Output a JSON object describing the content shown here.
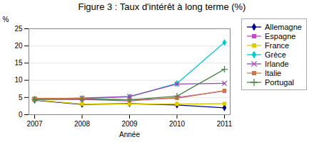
{
  "chart_data": {
    "type": "line",
    "title": "Figure 3 : Taux d'intérêt à long terme (%)",
    "x_label": "Année",
    "y_label": "%",
    "x": [
      2007,
      2008,
      2009,
      2010,
      2011
    ],
    "series": [
      {
        "name": "Allemagne",
        "color": "#00008B",
        "marker": "diamond",
        "values": [
          4.2,
          3.0,
          3.2,
          2.8,
          2.0
        ]
      },
      {
        "name": "Espagne",
        "color": "#cc44cc",
        "marker": "square",
        "values": [
          4.5,
          4.4,
          4.0,
          5.0,
          6.9
        ]
      },
      {
        "name": "France",
        "color": "#ddcc00",
        "marker": "square",
        "values": [
          4.3,
          3.1,
          3.1,
          3.1,
          3.2
        ]
      },
      {
        "name": "Grèce",
        "color": "#00cccc",
        "marker": "diamond",
        "values": [
          4.5,
          4.7,
          5.2,
          9.1,
          21.0
        ]
      },
      {
        "name": "Irlande",
        "color": "#9944bb",
        "marker": "x",
        "values": [
          4.5,
          4.8,
          5.3,
          8.9,
          9.1
        ]
      },
      {
        "name": "Italie",
        "color": "#cc7744",
        "marker": "square",
        "values": [
          4.7,
          4.7,
          4.3,
          4.8,
          7.0
        ]
      },
      {
        "name": "Portugal",
        "color": "#448844",
        "marker": "plus",
        "values": [
          4.4,
          4.5,
          4.3,
          5.4,
          13.2
        ]
      }
    ],
    "xlim": [
      2007,
      2011
    ],
    "xticks": [
      2007,
      2008,
      2009,
      2010,
      2011
    ],
    "ylim": [
      0,
      25
    ],
    "yticks": [
      0,
      5,
      10,
      15,
      20,
      25
    ],
    "grid": true,
    "legend": "right"
  }
}
